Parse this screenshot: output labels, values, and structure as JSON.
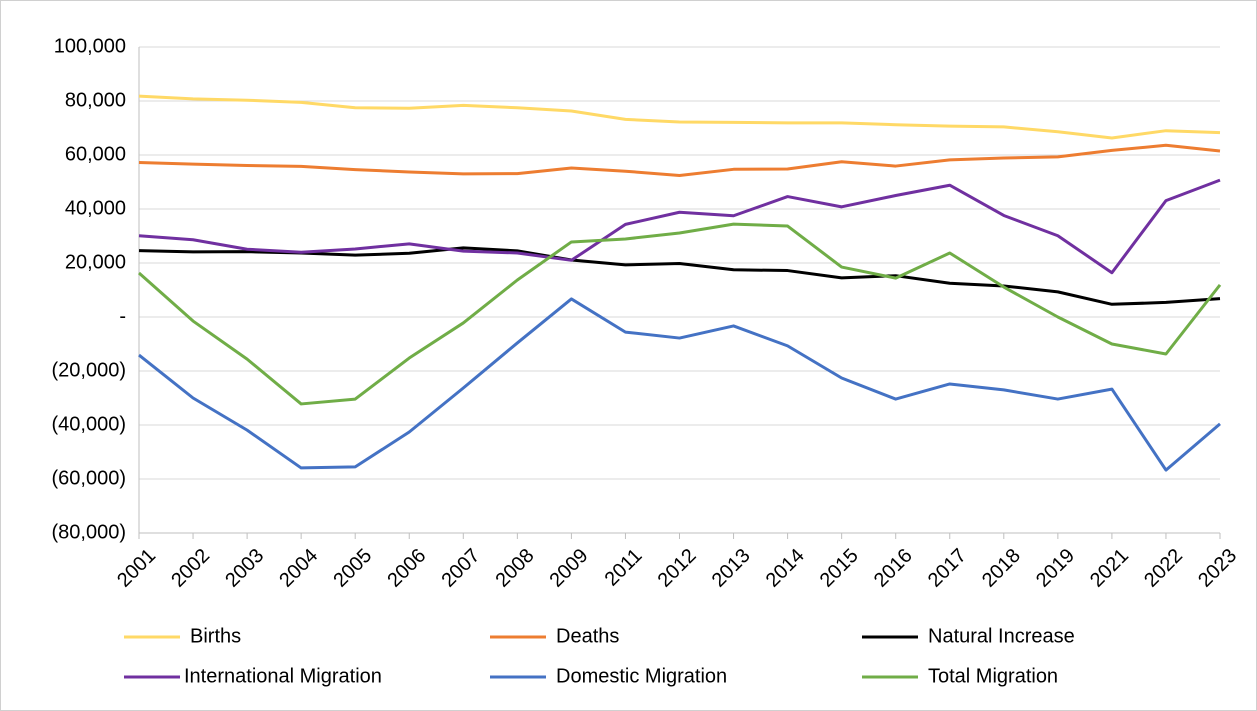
{
  "chart_data": {
    "type": "line",
    "categories": [
      "2001",
      "2002",
      "2003",
      "2004",
      "2005",
      "2006",
      "2007",
      "2008",
      "2009",
      "2011",
      "2012",
      "2013",
      "2014",
      "2015",
      "2016",
      "2017",
      "2018",
      "2019",
      "2021",
      "2022",
      "2023"
    ],
    "series": [
      {
        "name": "Births",
        "color": "#ffd966",
        "values": [
          81800,
          80800,
          80300,
          79500,
          77500,
          77300,
          78400,
          77500,
          76300,
          73200,
          72200,
          72100,
          71900,
          71900,
          71200,
          70700,
          70400,
          68600,
          66300,
          69000,
          68300
        ]
      },
      {
        "name": "Deaths",
        "color": "#ed7d31",
        "values": [
          57200,
          56600,
          56100,
          55800,
          54600,
          53700,
          53000,
          53100,
          55200,
          54000,
          52400,
          54700,
          54800,
          57500,
          55900,
          58200,
          58900,
          59300,
          61700,
          63600,
          61500
        ]
      },
      {
        "name": "Natural Increase",
        "color": "#000000",
        "values": [
          24600,
          24100,
          24200,
          23700,
          22900,
          23600,
          25600,
          24500,
          21100,
          19300,
          19800,
          17500,
          17200,
          14500,
          15300,
          12500,
          11500,
          9300,
          4700,
          5400,
          6800
        ]
      },
      {
        "name": "International Migration",
        "color": "#7030a0",
        "values": [
          30100,
          28600,
          25100,
          24000,
          25200,
          27100,
          24400,
          23700,
          21000,
          34300,
          38800,
          37500,
          44600,
          40800,
          45000,
          48800,
          37600,
          30100,
          16400,
          43100,
          50700
        ]
      },
      {
        "name": "Domestic Migration",
        "color": "#4472c4",
        "values": [
          -14100,
          -30000,
          -41900,
          -55900,
          -55500,
          -42600,
          -26300,
          -9600,
          6700,
          -5600,
          -7800,
          -3300,
          -10700,
          -22600,
          -30400,
          -24800,
          -27000,
          -30400,
          -26700,
          -56700,
          -39600
        ]
      },
      {
        "name": "Total Migration",
        "color": "#70ad47",
        "values": [
          16300,
          -1500,
          -15600,
          -32200,
          -30400,
          -15200,
          -2200,
          13700,
          27800,
          28900,
          31100,
          34400,
          33700,
          18500,
          14400,
          23700,
          11100,
          0,
          -10000,
          -13700,
          11900
        ]
      }
    ],
    "ylim": [
      -80000,
      100000
    ],
    "yticks": [
      {
        "value": -80000,
        "label": "(80,000)"
      },
      {
        "value": -60000,
        "label": "(60,000)"
      },
      {
        "value": -40000,
        "label": "(40,000)"
      },
      {
        "value": -20000,
        "label": "(20,000)"
      },
      {
        "value": 0,
        "label": "-"
      },
      {
        "value": 20000,
        "label": "20,000"
      },
      {
        "value": 40000,
        "label": "40,000"
      },
      {
        "value": 60000,
        "label": "60,000"
      },
      {
        "value": 80000,
        "label": "80,000"
      },
      {
        "value": 100000,
        "label": "100,000"
      }
    ],
    "grid": true
  }
}
